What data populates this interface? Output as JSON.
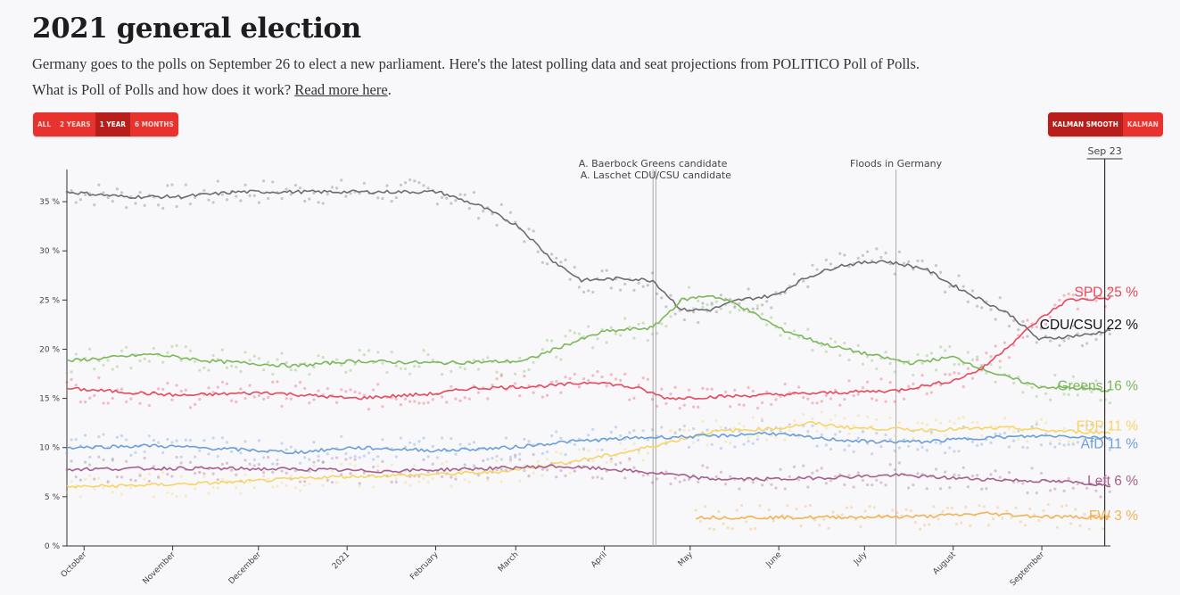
{
  "header": {
    "title": "2021 general election",
    "subtitle": "Germany goes to the polls on September 26 to elect a new parliament. Here's the latest polling data and seat projections from POLITICO Poll of Polls.",
    "question": "What is Poll of Polls and how does it work?",
    "read_more": "Read more here",
    "period": "."
  },
  "range_buttons": [
    {
      "label": "ALL",
      "active": false
    },
    {
      "label": "2 YEARS",
      "active": false
    },
    {
      "label": "1 YEAR",
      "active": true
    },
    {
      "label": "6 MONTHS",
      "active": false
    }
  ],
  "method_buttons": [
    {
      "label": "KALMAN SMOOTH",
      "active": true
    },
    {
      "label": "KALMAN",
      "active": false
    }
  ],
  "chart_data": {
    "type": "line",
    "title": "2021 general election",
    "x_unit": "days since 2020-09-25",
    "x_range": [
      0,
      365
    ],
    "ylim": [
      0,
      38
    ],
    "yticks": [
      0,
      5,
      10,
      15,
      20,
      25,
      30,
      35
    ],
    "ytick_suffix": " %",
    "xticks": [
      {
        "label": "October",
        "day": 6
      },
      {
        "label": "November",
        "day": 37
      },
      {
        "label": "December",
        "day": 67
      },
      {
        "label": "2021",
        "day": 98
      },
      {
        "label": "February",
        "day": 129
      },
      {
        "label": "March",
        "day": 157
      },
      {
        "label": "April",
        "day": 188
      },
      {
        "label": "May",
        "day": 218
      },
      {
        "label": "June",
        "day": 249
      },
      {
        "label": "July",
        "day": 279
      },
      {
        "label": "August",
        "day": 310
      },
      {
        "label": "September",
        "day": 341
      }
    ],
    "current_marker": {
      "label": "Sep 23",
      "day": 363
    },
    "events": [
      {
        "day": 205,
        "lines": [
          "A. Baerbock Greens candidate"
        ]
      },
      {
        "day": 206,
        "lines": [
          "",
          "A. Laschet CDU/CSU candidate"
        ]
      },
      {
        "day": 290,
        "lines": [
          "Floods in Germany"
        ]
      }
    ],
    "series": [
      {
        "name": "CDU/CSU",
        "label": "CDU/CSU",
        "value": "22 %",
        "color": "#6d6d6d",
        "points": [
          [
            0,
            36
          ],
          [
            20,
            35.5
          ],
          [
            40,
            35.5
          ],
          [
            60,
            36
          ],
          [
            90,
            36
          ],
          [
            130,
            36
          ],
          [
            145,
            34.5
          ],
          [
            158,
            32.5
          ],
          [
            170,
            29
          ],
          [
            180,
            27
          ],
          [
            195,
            27.2
          ],
          [
            205,
            27
          ],
          [
            215,
            24
          ],
          [
            225,
            24
          ],
          [
            235,
            25
          ],
          [
            248,
            25.5
          ],
          [
            258,
            27.2
          ],
          [
            270,
            28.5
          ],
          [
            285,
            29
          ],
          [
            300,
            28.2
          ],
          [
            310,
            26.5
          ],
          [
            320,
            25
          ],
          [
            330,
            23.5
          ],
          [
            340,
            21
          ],
          [
            350,
            21.3
          ],
          [
            358,
            21.5
          ],
          [
            365,
            22
          ]
        ]
      },
      {
        "name": "Greens",
        "label": "Greens",
        "value": "16 %",
        "color": "#7cb858",
        "points": [
          [
            0,
            18.8
          ],
          [
            30,
            19.5
          ],
          [
            50,
            18.8
          ],
          [
            80,
            18.3
          ],
          [
            100,
            18.8
          ],
          [
            130,
            18.6
          ],
          [
            160,
            18.8
          ],
          [
            175,
            20.5
          ],
          [
            188,
            21.8
          ],
          [
            205,
            22.2
          ],
          [
            215,
            25
          ],
          [
            225,
            25.5
          ],
          [
            235,
            24.5
          ],
          [
            250,
            22
          ],
          [
            265,
            20.5
          ],
          [
            280,
            19.5
          ],
          [
            295,
            18.6
          ],
          [
            310,
            19.2
          ],
          [
            325,
            17.5
          ],
          [
            340,
            16.2
          ],
          [
            355,
            16
          ],
          [
            365,
            15.8
          ]
        ]
      },
      {
        "name": "SPD",
        "label": "SPD",
        "value": "25 %",
        "color": "#e8495b",
        "points": [
          [
            0,
            16
          ],
          [
            40,
            15.3
          ],
          [
            70,
            15.6
          ],
          [
            100,
            15
          ],
          [
            130,
            15.5
          ],
          [
            140,
            16
          ],
          [
            170,
            16.3
          ],
          [
            185,
            16.7
          ],
          [
            200,
            16
          ],
          [
            210,
            15
          ],
          [
            230,
            15.2
          ],
          [
            260,
            15.5
          ],
          [
            290,
            15.8
          ],
          [
            310,
            16.8
          ],
          [
            320,
            18
          ],
          [
            330,
            20.5
          ],
          [
            340,
            23
          ],
          [
            350,
            25
          ],
          [
            365,
            25.2
          ]
        ]
      },
      {
        "name": "FDP",
        "label": "FDP",
        "value": "11 %",
        "color": "#f7d565",
        "points": [
          [
            0,
            6
          ],
          [
            30,
            6.2
          ],
          [
            60,
            6.5
          ],
          [
            90,
            7
          ],
          [
            120,
            7.2
          ],
          [
            150,
            7.5
          ],
          [
            175,
            8.5
          ],
          [
            195,
            9.5
          ],
          [
            210,
            10.5
          ],
          [
            225,
            11.6
          ],
          [
            250,
            12
          ],
          [
            260,
            12.5
          ],
          [
            275,
            12
          ],
          [
            300,
            11.8
          ],
          [
            330,
            12
          ],
          [
            345,
            11.7
          ],
          [
            365,
            11.5
          ]
        ]
      },
      {
        "name": "AfD",
        "label": "AfD",
        "value": "11 %",
        "color": "#6b9fd9",
        "points": [
          [
            0,
            10
          ],
          [
            30,
            10.2
          ],
          [
            60,
            9.8
          ],
          [
            80,
            9.5
          ],
          [
            100,
            10
          ],
          [
            130,
            9.7
          ],
          [
            155,
            10
          ],
          [
            175,
            10.6
          ],
          [
            200,
            11
          ],
          [
            230,
            11.2
          ],
          [
            245,
            11.5
          ],
          [
            260,
            11
          ],
          [
            280,
            10.6
          ],
          [
            300,
            10.6
          ],
          [
            320,
            11
          ],
          [
            345,
            11.2
          ],
          [
            365,
            11
          ]
        ]
      },
      {
        "name": "Left",
        "label": "Left",
        "value": "6 %",
        "color": "#a5608e",
        "points": [
          [
            0,
            7.8
          ],
          [
            40,
            7.9
          ],
          [
            80,
            7.8
          ],
          [
            110,
            7.6
          ],
          [
            150,
            7.9
          ],
          [
            170,
            8.1
          ],
          [
            190,
            7.8
          ],
          [
            210,
            7.3
          ],
          [
            225,
            6.8
          ],
          [
            250,
            6.8
          ],
          [
            270,
            7
          ],
          [
            290,
            7.2
          ],
          [
            310,
            6.9
          ],
          [
            330,
            6.7
          ],
          [
            350,
            6.5
          ],
          [
            365,
            6.2
          ]
        ]
      },
      {
        "name": "FW",
        "label": "FW",
        "value": "3 %",
        "color": "#f2b356",
        "points": [
          [
            220,
            2.9
          ],
          [
            260,
            2.9
          ],
          [
            300,
            3
          ],
          [
            322,
            3.3
          ],
          [
            340,
            3
          ],
          [
            365,
            2.9
          ]
        ]
      }
    ]
  }
}
